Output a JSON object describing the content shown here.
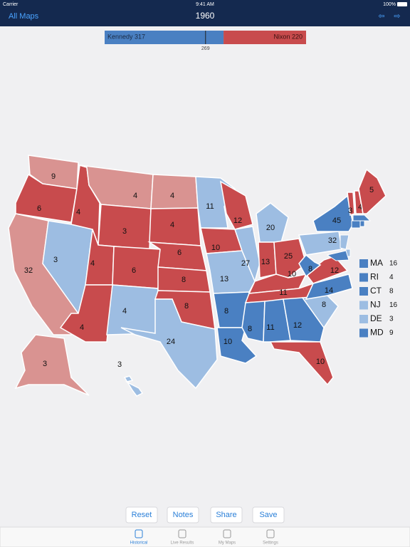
{
  "status_bar": {
    "carrier": "Carrier",
    "time": "9:41 AM",
    "battery": "100%"
  },
  "nav": {
    "back": "All Maps",
    "title": "1960"
  },
  "tally": {
    "left": {
      "name": "Kennedy",
      "votes": 317,
      "color": "#4a80c2"
    },
    "right": {
      "name": "Nixon",
      "votes": 220,
      "color": "#c84b4d"
    },
    "threshold": 269
  },
  "map": {
    "states": [
      {
        "votes": 9,
        "color": "#d99391"
      },
      {
        "votes": 6,
        "color": "#c84b4d"
      },
      {
        "votes": 32,
        "color": "#d99391"
      },
      {
        "votes": 3,
        "color": "#9dbde2"
      },
      {
        "votes": 4,
        "color": "#c84b4d"
      },
      {
        "votes": 4,
        "color": "#d99391"
      },
      {
        "votes": 3,
        "color": "#c84b4d"
      },
      {
        "votes": 4,
        "color": "#c84b4d"
      },
      {
        "votes": 4,
        "color": "#c84b4d"
      },
      {
        "votes": 6,
        "color": "#c84b4d"
      },
      {
        "votes": 4,
        "color": "#9dbde2"
      },
      {
        "votes": 4,
        "color": "#d99391"
      },
      {
        "votes": 4,
        "color": "#c84b4d"
      },
      {
        "votes": 6,
        "color": "#c84b4d"
      },
      {
        "votes": 8,
        "color": "#c84b4d"
      },
      {
        "votes": 8,
        "color": "#c84b4d"
      },
      {
        "votes": 24,
        "color": "#9dbde2"
      },
      {
        "votes": 11,
        "color": "#9dbde2"
      },
      {
        "votes": 10,
        "color": "#c84b4d"
      },
      {
        "votes": 13,
        "color": "#9dbde2"
      },
      {
        "votes": 8,
        "color": "#4a80c2"
      },
      {
        "votes": 10,
        "color": "#4a80c2"
      },
      {
        "votes": 12,
        "color": "#c84b4d"
      },
      {
        "votes": 27,
        "color": "#9dbde2"
      },
      {
        "votes": 20,
        "color": "#9dbde2"
      },
      {
        "votes": 13,
        "color": "#c84b4d"
      },
      {
        "votes": 25,
        "color": "#c84b4d"
      },
      {
        "votes": 10,
        "color": "#c84b4d"
      },
      {
        "votes": 11,
        "color": "#c84b4d"
      },
      {
        "votes": 8,
        "color": "#4a80c2"
      },
      {
        "votes": 11,
        "color": "#4a80c2"
      },
      {
        "votes": 12,
        "color": "#4a80c2"
      },
      {
        "votes": 10,
        "color": "#c84b4d"
      },
      {
        "votes": 8,
        "color": "#9dbde2"
      },
      {
        "votes": 14,
        "color": "#4a80c2"
      },
      {
        "votes": 12,
        "color": "#c84b4d"
      },
      {
        "votes": 8,
        "color": "#4a80c2"
      },
      {
        "votes": 32,
        "color": "#9dbde2"
      },
      {
        "votes": 45,
        "color": "#4a80c2"
      },
      {
        "votes": 3,
        "color": "#c84b4d"
      },
      {
        "votes": 4,
        "color": "#c84b4d"
      },
      {
        "votes": 5,
        "color": "#c84b4d"
      },
      {
        "votes": 3,
        "color": "#d99391"
      },
      {
        "votes": 3,
        "color": "#9dbde2"
      }
    ],
    "small_states": [
      {
        "abbr": "MA",
        "votes": 16,
        "color": "#4a80c2"
      },
      {
        "abbr": "RI",
        "votes": 4,
        "color": "#4a80c2"
      },
      {
        "abbr": "CT",
        "votes": 8,
        "color": "#4a80c2"
      },
      {
        "abbr": "NJ",
        "votes": 16,
        "color": "#9dbde2"
      },
      {
        "abbr": "DE",
        "votes": 3,
        "color": "#9dbde2"
      },
      {
        "abbr": "MD",
        "votes": 9,
        "color": "#4a80c2"
      }
    ]
  },
  "buttons": [
    "Reset",
    "Notes",
    "Share",
    "Save"
  ],
  "tabs": [
    "Historical",
    "Live Results",
    "My Maps",
    "Settings"
  ]
}
